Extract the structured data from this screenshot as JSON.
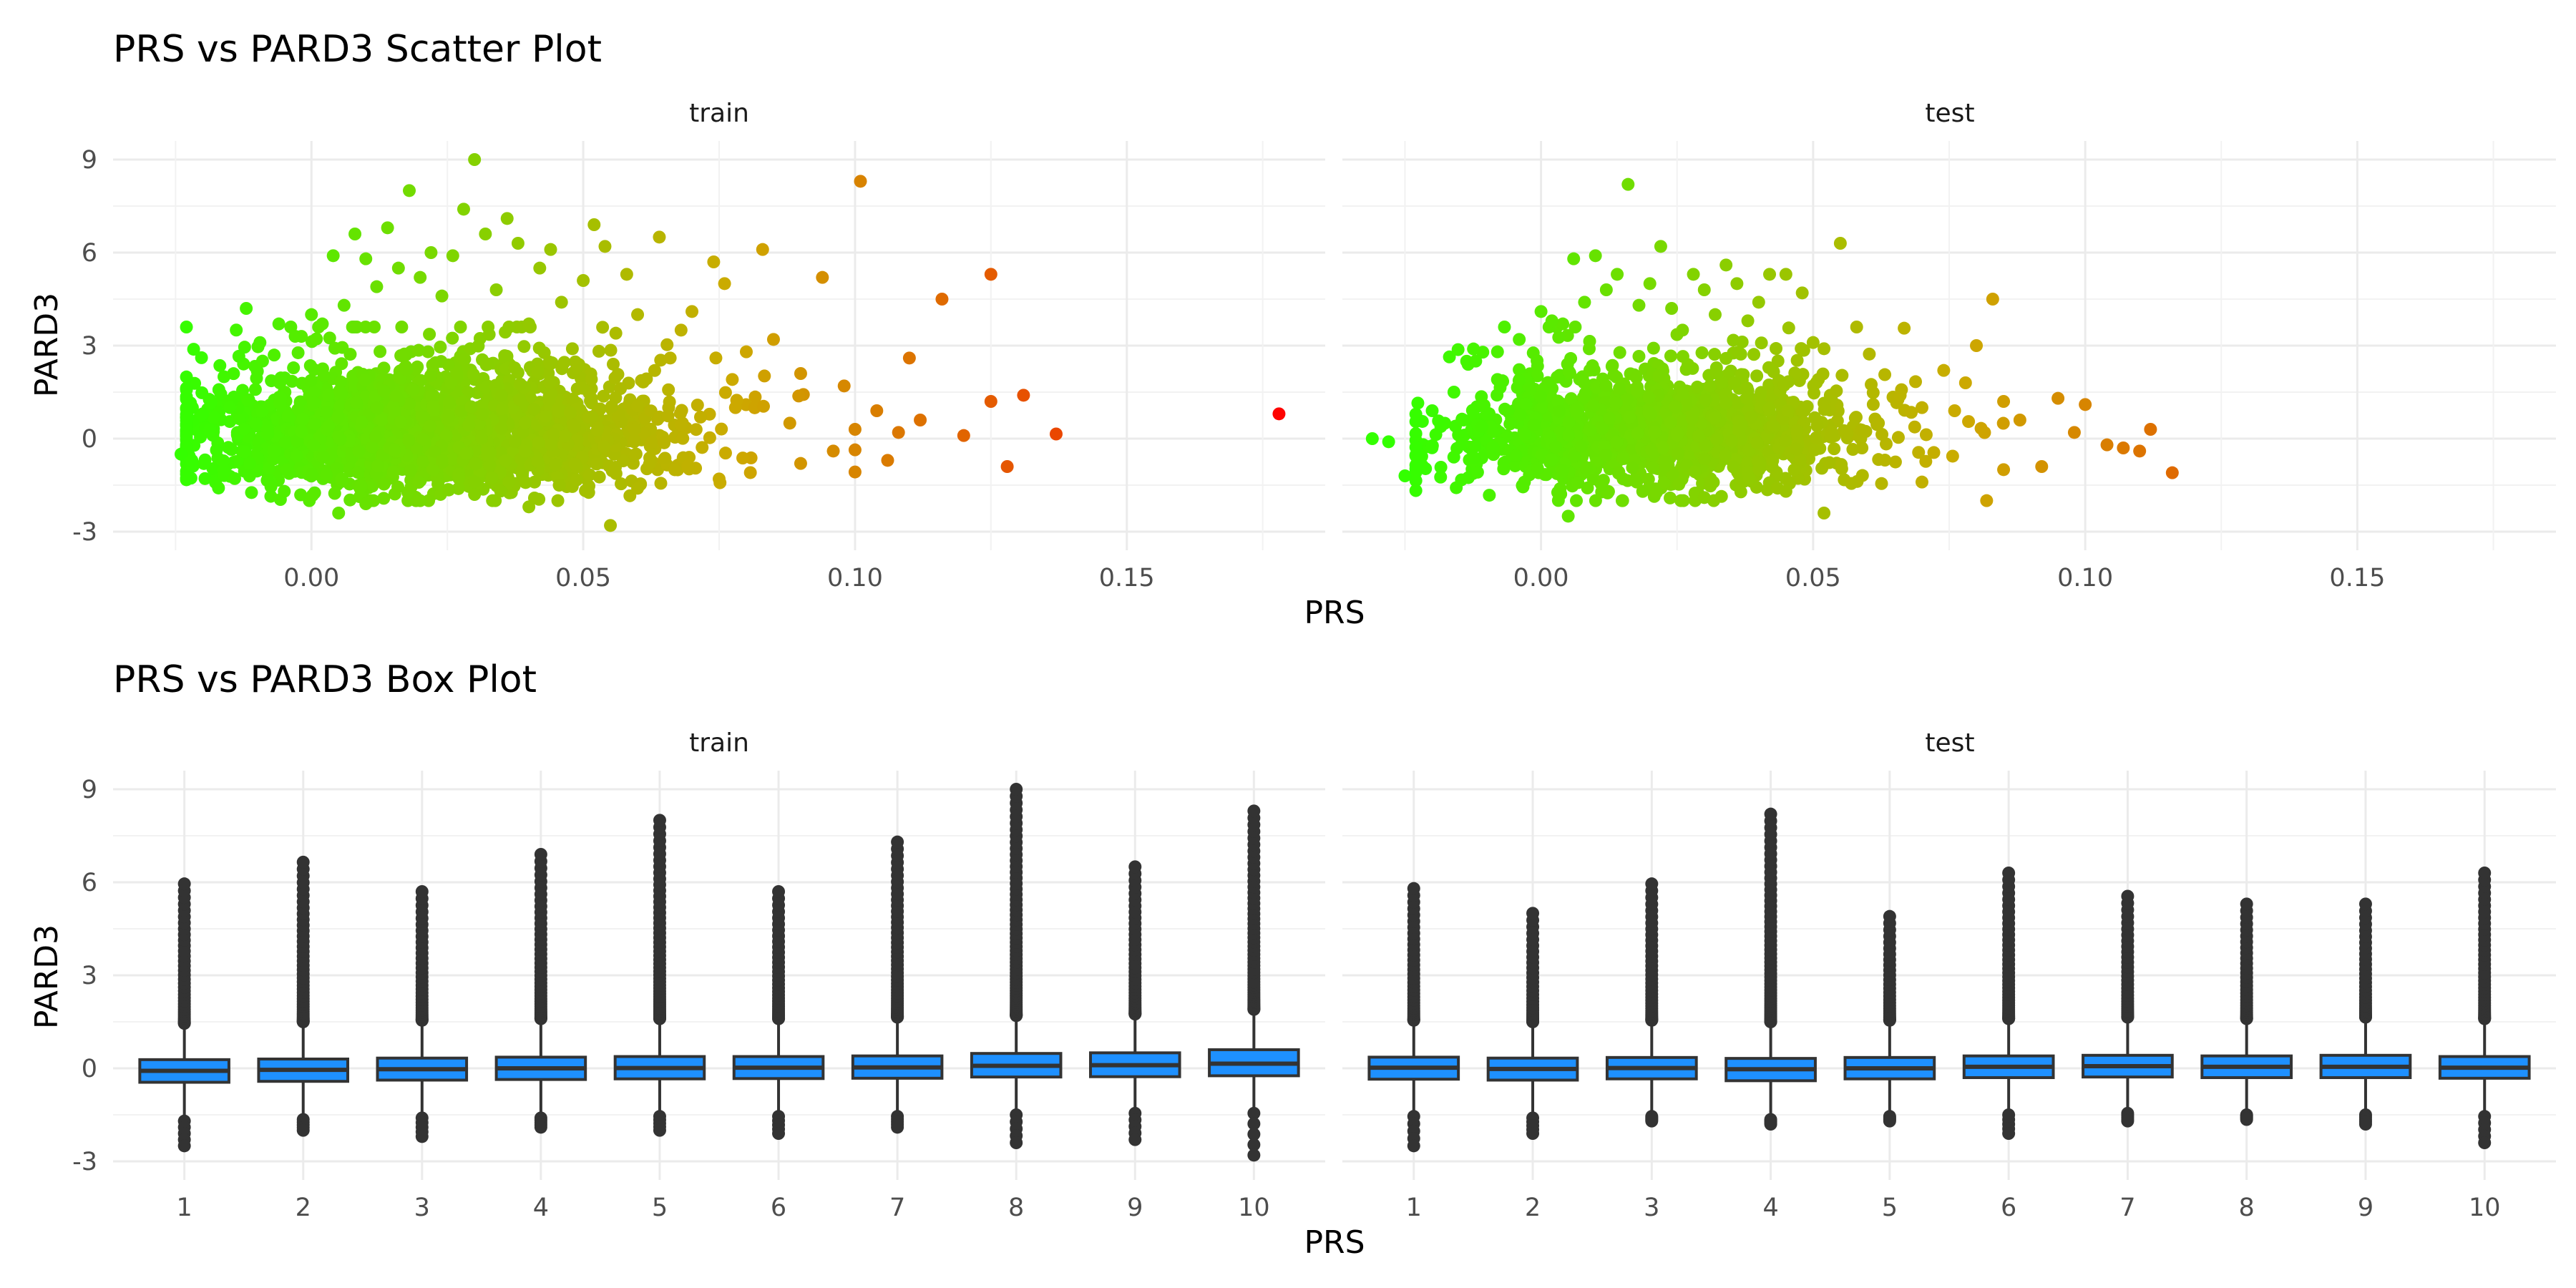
{
  "chart_data": [
    {
      "type": "scatter",
      "title": "PRS vs PARD3 Scatter Plot",
      "xlabel": "PRS",
      "ylabel": "PARD3",
      "facets": [
        "train",
        "test"
      ],
      "xlim": [
        -0.0365,
        0.1865
      ],
      "ylim": [
        -3.6,
        9.6
      ],
      "x_ticks": [
        "0.00",
        "0.05",
        "0.10",
        "0.15"
      ],
      "x_tick_values": [
        0,
        0.05,
        0.1,
        0.15
      ],
      "y_ticks": [
        "-3",
        "0",
        "3",
        "6",
        "9"
      ],
      "y_tick_values": [
        -3,
        0,
        3,
        6,
        9
      ],
      "grid": true,
      "color_scale": {
        "low": "#33ff00",
        "mid": "#ccaa00",
        "high": "#ff0000",
        "range": [
          -0.025,
          0.18
        ]
      },
      "notes_hidden": "dense cloud of several thousand points; representative points listed",
      "series": [
        {
          "name": "train",
          "points": [
            [
              0.178,
              0.8
            ],
            [
              0.137,
              0.15
            ],
            [
              0.131,
              1.4
            ],
            [
              0.128,
              -0.9
            ],
            [
              0.125,
              5.3
            ],
            [
              0.125,
              1.2
            ],
            [
              0.12,
              0.1
            ],
            [
              0.116,
              4.5
            ],
            [
              0.112,
              0.6
            ],
            [
              0.11,
              2.6
            ],
            [
              0.108,
              0.2
            ],
            [
              0.106,
              -0.7
            ],
            [
              0.104,
              0.9
            ],
            [
              0.101,
              8.3
            ],
            [
              0.1,
              0.3
            ],
            [
              0.098,
              1.7
            ],
            [
              0.096,
              -0.4
            ],
            [
              0.094,
              5.2
            ],
            [
              0.09,
              2.1
            ],
            [
              0.088,
              0.5
            ],
            [
              0.085,
              3.2
            ],
            [
              0.083,
              6.1
            ],
            [
              0.08,
              2.8
            ],
            [
              0.078,
              1.0
            ],
            [
              0.076,
              5.0
            ],
            [
              0.074,
              5.7
            ],
            [
              0.07,
              4.1
            ],
            [
              0.068,
              3.5
            ],
            [
              0.066,
              2.6
            ],
            [
              0.064,
              6.5
            ],
            [
              0.06,
              4.0
            ],
            [
              0.058,
              5.3
            ],
            [
              0.056,
              3.4
            ],
            [
              0.054,
              6.2
            ],
            [
              0.052,
              6.9
            ],
            [
              0.05,
              5.1
            ],
            [
              0.048,
              2.9
            ],
            [
              0.046,
              4.4
            ],
            [
              0.044,
              6.1
            ],
            [
              0.042,
              5.5
            ],
            [
              0.04,
              3.7
            ],
            [
              0.038,
              6.3
            ],
            [
              0.036,
              7.1
            ],
            [
              0.034,
              4.8
            ],
            [
              0.032,
              6.6
            ],
            [
              0.03,
              9.0
            ],
            [
              0.028,
              7.4
            ],
            [
              0.026,
              5.9
            ],
            [
              0.024,
              4.6
            ],
            [
              0.022,
              6.0
            ],
            [
              0.02,
              5.2
            ],
            [
              0.018,
              8.0
            ],
            [
              0.016,
              5.5
            ],
            [
              0.014,
              6.8
            ],
            [
              0.012,
              4.9
            ],
            [
              0.01,
              5.8
            ],
            [
              0.008,
              6.6
            ],
            [
              0.006,
              4.3
            ],
            [
              0.004,
              5.9
            ],
            [
              0.002,
              3.7
            ],
            [
              0.0,
              4.0
            ],
            [
              -0.003,
              3.3
            ],
            [
              -0.006,
              3.7
            ],
            [
              -0.009,
              2.5
            ],
            [
              -0.012,
              4.2
            ],
            [
              -0.015,
              1.0
            ],
            [
              -0.02,
              0.8
            ],
            [
              -0.022,
              -0.7
            ],
            [
              -0.024,
              -0.5
            ],
            [
              0.055,
              -2.8
            ],
            [
              0.04,
              -2.2
            ],
            [
              0.02,
              -2.0
            ],
            [
              0.005,
              -2.4
            ],
            [
              0.075,
              -1.3
            ],
            [
              0.06,
              -1.6
            ],
            [
              0.09,
              -0.8
            ],
            [
              0.03,
              -1.8
            ],
            [
              0.01,
              -2.1
            ],
            [
              -0.005,
              -1.7
            ]
          ]
        },
        {
          "name": "test",
          "points": [
            [
              0.116,
              -1.1
            ],
            [
              0.112,
              0.3
            ],
            [
              0.11,
              -0.4
            ],
            [
              0.107,
              -0.3
            ],
            [
              0.104,
              -0.2
            ],
            [
              0.1,
              1.1
            ],
            [
              0.098,
              0.2
            ],
            [
              0.095,
              1.3
            ],
            [
              0.092,
              -0.9
            ],
            [
              0.088,
              0.6
            ],
            [
              0.085,
              1.2
            ],
            [
              0.083,
              4.5
            ],
            [
              0.08,
              3.0
            ],
            [
              0.078,
              1.8
            ],
            [
              0.076,
              0.9
            ],
            [
              0.074,
              2.2
            ],
            [
              0.07,
              1.0
            ],
            [
              0.066,
              1.4
            ],
            [
              0.062,
              0.5
            ],
            [
              0.058,
              3.6
            ],
            [
              0.055,
              6.3
            ],
            [
              0.052,
              2.9
            ],
            [
              0.05,
              3.1
            ],
            [
              0.048,
              4.7
            ],
            [
              0.045,
              5.3
            ],
            [
              0.042,
              5.3
            ],
            [
              0.04,
              4.4
            ],
            [
              0.038,
              3.8
            ],
            [
              0.036,
              5.0
            ],
            [
              0.034,
              5.6
            ],
            [
              0.032,
              4.0
            ],
            [
              0.03,
              4.8
            ],
            [
              0.028,
              5.3
            ],
            [
              0.026,
              3.5
            ],
            [
              0.024,
              4.2
            ],
            [
              0.022,
              6.2
            ],
            [
              0.02,
              5.0
            ],
            [
              0.018,
              4.3
            ],
            [
              0.016,
              8.2
            ],
            [
              0.014,
              5.3
            ],
            [
              0.012,
              4.8
            ],
            [
              0.01,
              5.9
            ],
            [
              0.008,
              4.4
            ],
            [
              0.006,
              5.8
            ],
            [
              0.004,
              3.7
            ],
            [
              0.002,
              3.8
            ],
            [
              0.0,
              4.1
            ],
            [
              -0.004,
              3.2
            ],
            [
              -0.008,
              2.8
            ],
            [
              -0.012,
              2.5
            ],
            [
              -0.016,
              1.5
            ],
            [
              -0.02,
              0.9
            ],
            [
              -0.025,
              -1.2
            ],
            [
              -0.028,
              -0.1
            ],
            [
              -0.031,
              0.0
            ],
            [
              0.052,
              -2.4
            ],
            [
              0.005,
              -2.5
            ],
            [
              0.03,
              -1.9
            ],
            [
              0.015,
              -2.0
            ],
            [
              0.07,
              -1.4
            ],
            [
              0.085,
              -1.0
            ],
            [
              0.045,
              -1.7
            ]
          ]
        }
      ]
    },
    {
      "type": "box",
      "title": "PRS vs PARD3 Box Plot",
      "xlabel": "PRS",
      "ylabel": "PARD3",
      "facets": [
        "train",
        "test"
      ],
      "categories": [
        "1",
        "2",
        "3",
        "4",
        "5",
        "6",
        "7",
        "8",
        "9",
        "10"
      ],
      "ylim": [
        -3.6,
        9.6
      ],
      "y_ticks": [
        "-3",
        "0",
        "3",
        "6",
        "9"
      ],
      "y_tick_values": [
        -3,
        0,
        3,
        6,
        9
      ],
      "grid": true,
      "box_fill": "#1e90ff",
      "box_line": "#333333",
      "series": [
        {
          "name": "train",
          "boxes": [
            {
              "q1": -0.45,
              "median": -0.08,
              "q3": 0.28,
              "whisker_low": -1.55,
              "whisker_high": 1.35,
              "outliers_high_max": 5.95,
              "outliers_high_min": 1.45,
              "outliers_low_min": -2.5
            },
            {
              "q1": -0.42,
              "median": -0.05,
              "q3": 0.3,
              "whisker_low": -1.5,
              "whisker_high": 1.4,
              "outliers_high_max": 6.65,
              "outliers_high_min": 1.5,
              "outliers_low_min": -2.0
            },
            {
              "q1": -0.38,
              "median": -0.03,
              "q3": 0.33,
              "whisker_low": -1.45,
              "whisker_high": 1.45,
              "outliers_high_max": 5.7,
              "outliers_high_min": 1.55,
              "outliers_low_min": -2.2
            },
            {
              "q1": -0.36,
              "median": 0.0,
              "q3": 0.36,
              "whisker_low": -1.45,
              "whisker_high": 1.5,
              "outliers_high_max": 6.9,
              "outliers_high_min": 1.6,
              "outliers_low_min": -1.9
            },
            {
              "q1": -0.34,
              "median": 0.01,
              "q3": 0.38,
              "whisker_low": -1.4,
              "whisker_high": 1.5,
              "outliers_high_max": 8.0,
              "outliers_high_min": 1.6,
              "outliers_low_min": -2.0
            },
            {
              "q1": -0.33,
              "median": 0.02,
              "q3": 0.38,
              "whisker_low": -1.4,
              "whisker_high": 1.5,
              "outliers_high_max": 5.7,
              "outliers_high_min": 1.6,
              "outliers_low_min": -2.1
            },
            {
              "q1": -0.32,
              "median": 0.03,
              "q3": 0.4,
              "whisker_low": -1.4,
              "whisker_high": 1.55,
              "outliers_high_max": 7.3,
              "outliers_high_min": 1.65,
              "outliers_low_min": -1.9
            },
            {
              "q1": -0.28,
              "median": 0.08,
              "q3": 0.48,
              "whisker_low": -1.35,
              "whisker_high": 1.6,
              "outliers_high_max": 9.0,
              "outliers_high_min": 1.7,
              "outliers_low_min": -2.4
            },
            {
              "q1": -0.27,
              "median": 0.1,
              "q3": 0.5,
              "whisker_low": -1.3,
              "whisker_high": 1.65,
              "outliers_high_max": 6.5,
              "outliers_high_min": 1.75,
              "outliers_low_min": -2.3
            },
            {
              "q1": -0.24,
              "median": 0.15,
              "q3": 0.6,
              "whisker_low": -1.3,
              "whisker_high": 1.8,
              "outliers_high_max": 8.3,
              "outliers_high_min": 1.9,
              "outliers_low_min": -2.8
            }
          ]
        },
        {
          "name": "test",
          "boxes": [
            {
              "q1": -0.35,
              "median": 0.02,
              "q3": 0.36,
              "whisker_low": -1.4,
              "whisker_high": 1.45,
              "outliers_high_max": 5.8,
              "outliers_high_min": 1.55,
              "outliers_low_min": -2.5
            },
            {
              "q1": -0.38,
              "median": -0.02,
              "q3": 0.33,
              "whisker_low": -1.45,
              "whisker_high": 1.4,
              "outliers_high_max": 5.0,
              "outliers_high_min": 1.5,
              "outliers_low_min": -2.1
            },
            {
              "q1": -0.34,
              "median": 0.01,
              "q3": 0.35,
              "whisker_low": -1.4,
              "whisker_high": 1.45,
              "outliers_high_max": 5.95,
              "outliers_high_min": 1.55,
              "outliers_low_min": -1.7
            },
            {
              "q1": -0.4,
              "median": -0.03,
              "q3": 0.32,
              "whisker_low": -1.5,
              "whisker_high": 1.4,
              "outliers_high_max": 8.2,
              "outliers_high_min": 1.5,
              "outliers_low_min": -1.8
            },
            {
              "q1": -0.34,
              "median": 0.0,
              "q3": 0.35,
              "whisker_low": -1.4,
              "whisker_high": 1.45,
              "outliers_high_max": 4.9,
              "outliers_high_min": 1.55,
              "outliers_low_min": -1.7
            },
            {
              "q1": -0.3,
              "median": 0.05,
              "q3": 0.4,
              "whisker_low": -1.35,
              "whisker_high": 1.5,
              "outliers_high_max": 6.3,
              "outliers_high_min": 1.6,
              "outliers_low_min": -2.1
            },
            {
              "q1": -0.28,
              "median": 0.07,
              "q3": 0.42,
              "whisker_low": -1.3,
              "whisker_high": 1.55,
              "outliers_high_max": 5.55,
              "outliers_high_min": 1.65,
              "outliers_low_min": -1.7
            },
            {
              "q1": -0.3,
              "median": 0.05,
              "q3": 0.4,
              "whisker_low": -1.35,
              "whisker_high": 1.5,
              "outliers_high_max": 5.3,
              "outliers_high_min": 1.6,
              "outliers_low_min": -1.65
            },
            {
              "q1": -0.3,
              "median": 0.05,
              "q3": 0.42,
              "whisker_low": -1.35,
              "whisker_high": 1.55,
              "outliers_high_max": 5.3,
              "outliers_high_min": 1.65,
              "outliers_low_min": -1.8
            },
            {
              "q1": -0.32,
              "median": 0.02,
              "q3": 0.38,
              "whisker_low": -1.4,
              "whisker_high": 1.5,
              "outliers_high_max": 6.3,
              "outliers_high_min": 1.6,
              "outliers_low_min": -2.4
            }
          ]
        }
      ]
    }
  ]
}
